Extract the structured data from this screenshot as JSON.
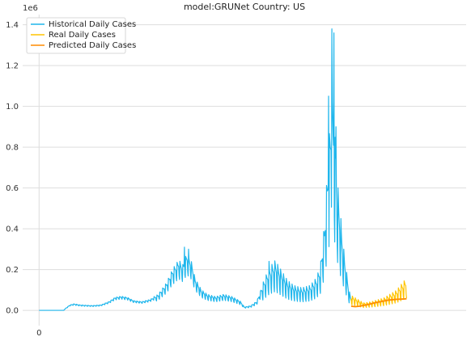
{
  "chart_data": {
    "type": "line",
    "title": "model:GRUNet  Country: US",
    "xlabel": "",
    "ylabel": "",
    "y_offset_label": "1e6",
    "ylim": [
      -0.075,
      1.45
    ],
    "xlim": [
      -40,
      1040
    ],
    "yticks": [
      0.0,
      0.2,
      0.4,
      0.6,
      0.8,
      1.0,
      1.2,
      1.4
    ],
    "ytick_labels": [
      "0.0",
      "0.2",
      "0.4",
      "0.6",
      "0.8",
      "1.0",
      "1.2",
      "1.4"
    ],
    "xticks": [
      0
    ],
    "xtick_labels": [
      "0"
    ],
    "grid": true,
    "legend_position": "upper-left",
    "historical": {
      "name": "Historical Daily Cases",
      "color": "#1fb6ec",
      "start_day": 0,
      "anchors": [
        [
          0,
          0.0
        ],
        [
          30,
          0.0
        ],
        [
          60,
          0.0
        ],
        [
          65,
          0.01
        ],
        [
          75,
          0.025
        ],
        [
          85,
          0.03
        ],
        [
          100,
          0.025
        ],
        [
          130,
          0.022
        ],
        [
          150,
          0.025
        ],
        [
          170,
          0.04
        ],
        [
          185,
          0.06
        ],
        [
          200,
          0.065
        ],
        [
          215,
          0.06
        ],
        [
          230,
          0.045
        ],
        [
          250,
          0.04
        ],
        [
          270,
          0.05
        ],
        [
          290,
          0.07
        ],
        [
          310,
          0.12
        ],
        [
          325,
          0.18
        ],
        [
          340,
          0.22
        ],
        [
          350,
          0.2
        ],
        [
          360,
          0.25
        ],
        [
          370,
          0.22
        ],
        [
          380,
          0.14
        ],
        [
          395,
          0.09
        ],
        [
          410,
          0.07
        ],
        [
          430,
          0.06
        ],
        [
          450,
          0.07
        ],
        [
          470,
          0.06
        ],
        [
          490,
          0.04
        ],
        [
          500,
          0.015
        ],
        [
          515,
          0.02
        ],
        [
          530,
          0.04
        ],
        [
          545,
          0.11
        ],
        [
          560,
          0.17
        ],
        [
          575,
          0.2
        ],
        [
          590,
          0.16
        ],
        [
          605,
          0.12
        ],
        [
          620,
          0.1
        ],
        [
          640,
          0.09
        ],
        [
          660,
          0.1
        ],
        [
          675,
          0.13
        ],
        [
          685,
          0.18
        ],
        [
          695,
          0.35
        ],
        [
          705,
          0.65
        ],
        [
          712,
          0.85
        ],
        [
          718,
          0.8
        ],
        [
          725,
          0.55
        ],
        [
          735,
          0.35
        ],
        [
          745,
          0.2
        ],
        [
          755,
          0.08
        ],
        [
          760,
          0.05
        ]
      ]
    },
    "real": {
      "name": "Real Daily Cases",
      "color": "#ffc400",
      "start_day": 760,
      "anchors": [
        [
          760,
          0.06
        ],
        [
          770,
          0.05
        ],
        [
          780,
          0.04
        ],
        [
          790,
          0.03
        ],
        [
          800,
          0.032
        ],
        [
          810,
          0.035
        ],
        [
          820,
          0.04
        ],
        [
          830,
          0.045
        ],
        [
          840,
          0.05
        ],
        [
          850,
          0.06
        ],
        [
          860,
          0.07
        ],
        [
          870,
          0.08
        ],
        [
          880,
          0.1
        ],
        [
          890,
          0.12
        ],
        [
          895,
          0.13
        ]
      ]
    },
    "predicted": {
      "name": "Predicted Daily Cases",
      "color": "#ff8c00",
      "points": [
        [
          760,
          0.02
        ],
        [
          770,
          0.018
        ],
        [
          780,
          0.02
        ],
        [
          790,
          0.024
        ],
        [
          800,
          0.028
        ],
        [
          810,
          0.033
        ],
        [
          820,
          0.038
        ],
        [
          830,
          0.042
        ],
        [
          840,
          0.046
        ],
        [
          850,
          0.05
        ],
        [
          860,
          0.052
        ],
        [
          870,
          0.054
        ],
        [
          880,
          0.055
        ],
        [
          890,
          0.056
        ],
        [
          895,
          0.057
        ]
      ]
    },
    "notable_peaks": [
      [
        354,
        0.31
      ],
      [
        364,
        0.3
      ],
      [
        560,
        0.24
      ],
      [
        705,
        1.05
      ],
      [
        713,
        1.38
      ],
      [
        718,
        1.36
      ],
      [
        723,
        0.9
      ],
      [
        735,
        0.45
      ]
    ]
  }
}
